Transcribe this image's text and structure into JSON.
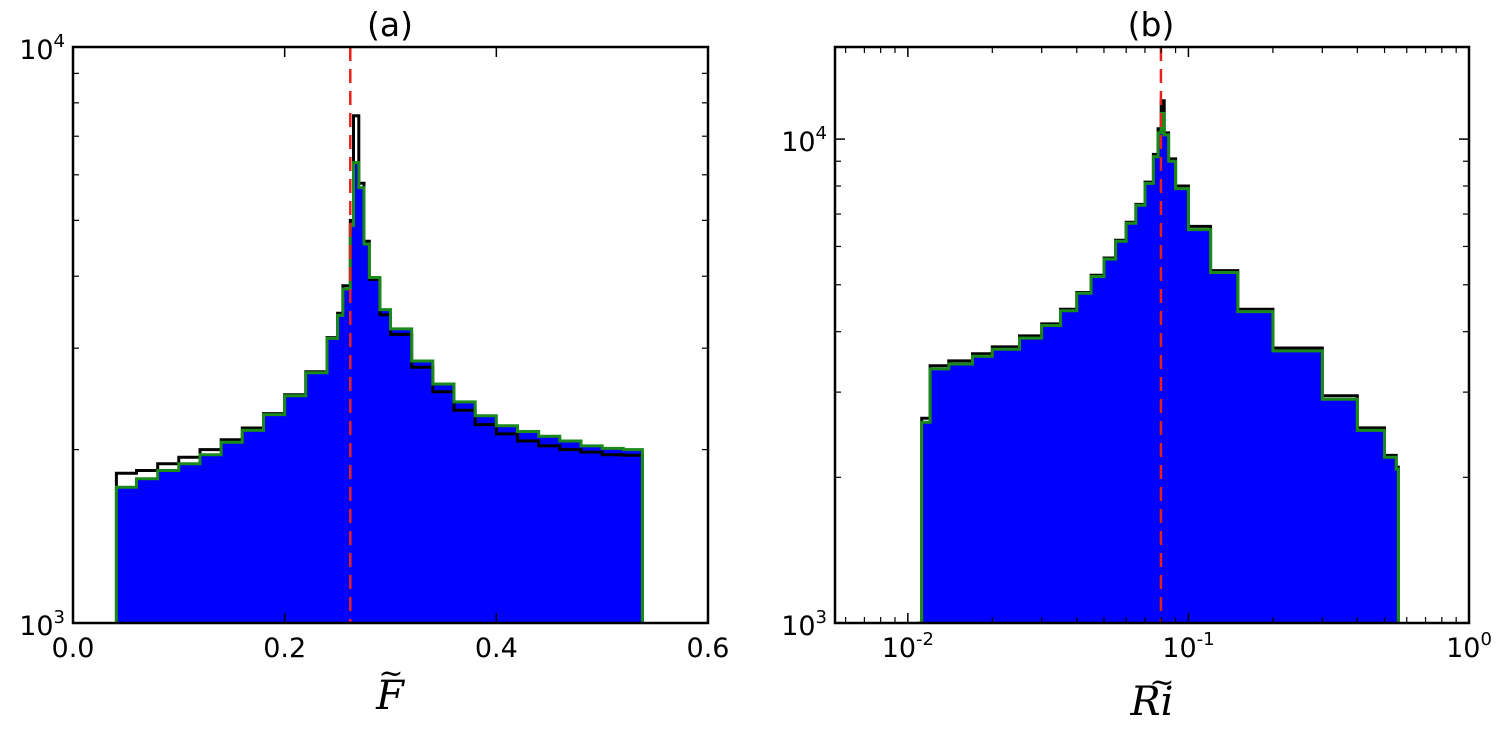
{
  "chart_data": [
    {
      "type": "area",
      "title": "(a)",
      "xlabel": "F",
      "xlabel_accent": "~",
      "xscale": "linear",
      "yscale": "log",
      "xlim": [
        0.0,
        0.6
      ],
      "ylim": [
        1000,
        10000
      ],
      "x_ticks": [
        {
          "value": 0.0,
          "label": "0.0"
        },
        {
          "value": 0.2,
          "label": "0.2"
        },
        {
          "value": 0.4,
          "label": "0.4"
        },
        {
          "value": 0.6,
          "label": "0.6"
        }
      ],
      "y_ticks": [
        {
          "value": 1000,
          "base": "10",
          "exp": "3"
        },
        {
          "value": 10000,
          "base": "10",
          "exp": "4"
        }
      ],
      "reference_line": {
        "x": 0.262,
        "color": "#e8211d",
        "style": "dashed"
      },
      "grid": false,
      "series": [
        {
          "color": "#0000ff",
          "style": "filled",
          "x": [
            0.041,
            0.06,
            0.08,
            0.1,
            0.12,
            0.14,
            0.16,
            0.18,
            0.2,
            0.22,
            0.24,
            0.25,
            0.255,
            0.262,
            0.265,
            0.27,
            0.275,
            0.28,
            0.29,
            0.3,
            0.32,
            0.34,
            0.36,
            0.38,
            0.4,
            0.42,
            0.44,
            0.46,
            0.48,
            0.5,
            0.52,
            0.538
          ],
          "y": [
            1720,
            1780,
            1840,
            1890,
            1960,
            2060,
            2160,
            2300,
            2480,
            2720,
            3120,
            3420,
            3800,
            4900,
            6300,
            5700,
            4550,
            3980,
            3500,
            3240,
            2850,
            2600,
            2420,
            2290,
            2200,
            2150,
            2110,
            2070,
            2030,
            2010,
            2000,
            2000
          ]
        },
        {
          "color": "#000000",
          "style": "step",
          "x": [
            0.041,
            0.06,
            0.08,
            0.1,
            0.12,
            0.14,
            0.16,
            0.18,
            0.2,
            0.22,
            0.24,
            0.25,
            0.255,
            0.262,
            0.265,
            0.27,
            0.275,
            0.28,
            0.29,
            0.3,
            0.32,
            0.34,
            0.36,
            0.38,
            0.4,
            0.42,
            0.44,
            0.46,
            0.48,
            0.5,
            0.52,
            0.538
          ],
          "y": [
            1820,
            1840,
            1890,
            1940,
            2000,
            2080,
            2180,
            2310,
            2490,
            2730,
            3130,
            3450,
            3850,
            5000,
            7600,
            5800,
            4600,
            3950,
            3430,
            3170,
            2780,
            2520,
            2340,
            2210,
            2130,
            2070,
            2030,
            2000,
            1980,
            1960,
            1955,
            1950
          ]
        },
        {
          "color": "#1a8a1a",
          "style": "step",
          "x": [
            0.041,
            0.06,
            0.08,
            0.1,
            0.12,
            0.14,
            0.16,
            0.18,
            0.2,
            0.22,
            0.24,
            0.25,
            0.255,
            0.262,
            0.265,
            0.27,
            0.275,
            0.28,
            0.29,
            0.3,
            0.32,
            0.34,
            0.36,
            0.38,
            0.4,
            0.42,
            0.44,
            0.46,
            0.48,
            0.5,
            0.52,
            0.538
          ],
          "y": [
            1720,
            1780,
            1840,
            1890,
            1960,
            2060,
            2160,
            2300,
            2480,
            2720,
            3120,
            3420,
            3800,
            4900,
            6300,
            5700,
            4550,
            3980,
            3500,
            3240,
            2850,
            2600,
            2420,
            2290,
            2200,
            2150,
            2110,
            2070,
            2030,
            2010,
            2000,
            2000
          ]
        }
      ]
    },
    {
      "type": "area",
      "title": "(b)",
      "xlabel": "Ri",
      "xlabel_accent": "~",
      "xscale": "log",
      "yscale": "log",
      "xlim": [
        0.0055,
        1.0
      ],
      "ylim": [
        1000,
        15500
      ],
      "x_ticks": [
        {
          "value": 0.01,
          "base": "10",
          "exp": "-2"
        },
        {
          "value": 0.1,
          "base": "10",
          "exp": "-1"
        },
        {
          "value": 1.0,
          "base": "10",
          "exp": "0"
        }
      ],
      "y_ticks": [
        {
          "value": 1000,
          "base": "10",
          "exp": "3"
        },
        {
          "value": 10000,
          "base": "10",
          "exp": "4"
        }
      ],
      "reference_line": {
        "x": 0.0798,
        "color": "#e8211d",
        "style": "dashed"
      },
      "grid": false,
      "series": [
        {
          "color": "#0000ff",
          "style": "filled",
          "x": [
            0.0108,
            0.0112,
            0.012,
            0.014,
            0.017,
            0.02,
            0.025,
            0.03,
            0.035,
            0.04,
            0.045,
            0.05,
            0.055,
            0.06,
            0.065,
            0.07,
            0.075,
            0.078,
            0.08,
            0.082,
            0.085,
            0.09,
            0.1,
            0.12,
            0.15,
            0.2,
            0.3,
            0.4,
            0.5,
            0.55,
            0.56
          ],
          "y": [
            1000,
            2600,
            3350,
            3430,
            3560,
            3680,
            3880,
            4120,
            4420,
            4800,
            5200,
            5650,
            6150,
            6700,
            7300,
            8100,
            9200,
            10300,
            11300,
            10200,
            9000,
            7900,
            6500,
            5300,
            4400,
            3650,
            2900,
            2500,
            2200,
            2080,
            1000
          ]
        },
        {
          "color": "#000000",
          "style": "step",
          "x": [
            0.0108,
            0.0112,
            0.012,
            0.014,
            0.017,
            0.02,
            0.025,
            0.03,
            0.035,
            0.04,
            0.045,
            0.05,
            0.055,
            0.06,
            0.065,
            0.07,
            0.075,
            0.078,
            0.08,
            0.082,
            0.085,
            0.09,
            0.1,
            0.12,
            0.15,
            0.2,
            0.3,
            0.4,
            0.5,
            0.55,
            0.56
          ],
          "y": [
            1000,
            2650,
            3400,
            3480,
            3600,
            3720,
            3920,
            4150,
            4450,
            4820,
            5230,
            5680,
            6180,
            6730,
            7330,
            8150,
            9300,
            10500,
            12000,
            10300,
            9100,
            8000,
            6600,
            5350,
            4450,
            3700,
            2950,
            2530,
            2220,
            2100,
            1000
          ]
        },
        {
          "color": "#1a8a1a",
          "style": "step",
          "x": [
            0.0108,
            0.0112,
            0.012,
            0.014,
            0.017,
            0.02,
            0.025,
            0.03,
            0.035,
            0.04,
            0.045,
            0.05,
            0.055,
            0.06,
            0.065,
            0.07,
            0.075,
            0.078,
            0.08,
            0.082,
            0.085,
            0.09,
            0.1,
            0.12,
            0.15,
            0.2,
            0.3,
            0.4,
            0.5,
            0.55,
            0.56
          ],
          "y": [
            1000,
            2600,
            3350,
            3430,
            3560,
            3680,
            3880,
            4120,
            4420,
            4800,
            5200,
            5650,
            6150,
            6700,
            7300,
            8100,
            9200,
            10300,
            11300,
            10200,
            9000,
            7900,
            6500,
            5300,
            4400,
            3650,
            2900,
            2500,
            2200,
            2080,
            1000
          ]
        }
      ]
    }
  ]
}
